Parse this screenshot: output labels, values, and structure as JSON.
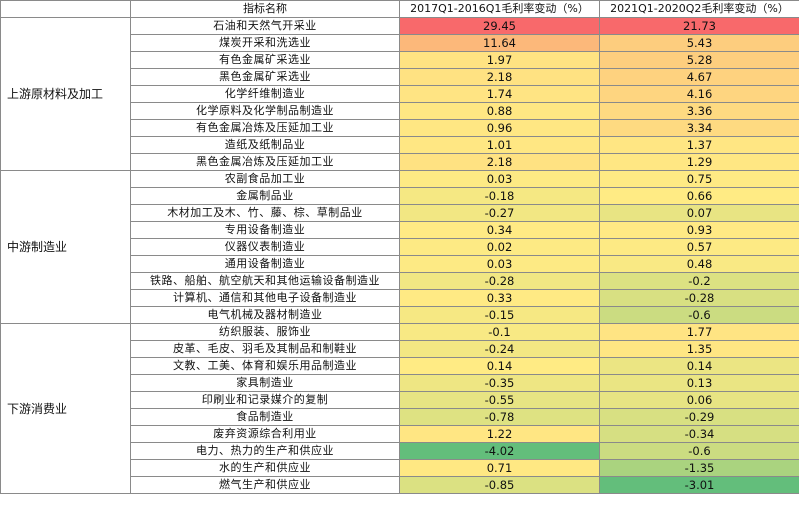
{
  "header": {
    "col_name": "指标名称",
    "col_v1": "2017Q1-2016Q1毛利率变动（%）",
    "col_v2": "2021Q1-2020Q2毛利率变动（%）"
  },
  "groups": [
    {
      "label": "上游原材料及加工",
      "rows": [
        {
          "name": "石油和天然气开采业",
          "v1": "29.45",
          "v2": "21.73"
        },
        {
          "name": "煤炭开采和洗选业",
          "v1": "11.64",
          "v2": "5.43"
        },
        {
          "name": "有色金属矿采选业",
          "v1": "1.97",
          "v2": "5.28"
        },
        {
          "name": "黑色金属矿采选业",
          "v1": "2.18",
          "v2": "4.67"
        },
        {
          "name": "化学纤维制造业",
          "v1": "1.74",
          "v2": "4.16"
        },
        {
          "name": "化学原料及化学制品制造业",
          "v1": "0.88",
          "v2": "3.36"
        },
        {
          "name": "有色金属冶炼及压延加工业",
          "v1": "0.96",
          "v2": "3.34"
        },
        {
          "name": "造纸及纸制品业",
          "v1": "1.01",
          "v2": "1.37"
        },
        {
          "name": "黑色金属冶炼及压延加工业",
          "v1": "2.18",
          "v2": "1.29"
        }
      ]
    },
    {
      "label": "中游制造业",
      "rows": [
        {
          "name": "农副食品加工业",
          "v1": "0.03",
          "v2": "0.75"
        },
        {
          "name": "金属制品业",
          "v1": "-0.18",
          "v2": "0.66"
        },
        {
          "name": "木材加工及木、竹、藤、棕、草制品业",
          "v1": "-0.27",
          "v2": "0.07"
        },
        {
          "name": "专用设备制造业",
          "v1": "0.34",
          "v2": "0.93"
        },
        {
          "name": "仪器仪表制造业",
          "v1": "0.02",
          "v2": "0.57"
        },
        {
          "name": "通用设备制造业",
          "v1": "0.03",
          "v2": "0.48"
        },
        {
          "name": "铁路、船舶、航空航天和其他运输设备制造业",
          "v1": "-0.28",
          "v2": "-0.2"
        },
        {
          "name": "计算机、通信和其他电子设备制造业",
          "v1": "0.33",
          "v2": "-0.28"
        },
        {
          "name": "电气机械及器材制造业",
          "v1": "-0.15",
          "v2": "-0.6"
        }
      ]
    },
    {
      "label": "下游消费业",
      "rows": [
        {
          "name": "纺织服装、服饰业",
          "v1": "-0.1",
          "v2": "1.77"
        },
        {
          "name": "皮革、毛皮、羽毛及其制品和制鞋业",
          "v1": "-0.24",
          "v2": "1.35"
        },
        {
          "name": "文教、工美、体育和娱乐用品制造业",
          "v1": "0.14",
          "v2": "0.14"
        },
        {
          "name": "家具制造业",
          "v1": "-0.35",
          "v2": "0.13"
        },
        {
          "name": "印刷业和记录媒介的复制",
          "v1": "-0.55",
          "v2": "0.06"
        },
        {
          "name": "食品制造业",
          "v1": "-0.78",
          "v2": "-0.29"
        },
        {
          "name": "废弃资源综合利用业",
          "v1": "1.22",
          "v2": "-0.34"
        },
        {
          "name": "电力、热力的生产和供应业",
          "v1": "-4.02",
          "v2": "-0.6"
        },
        {
          "name": "水的生产和供应业",
          "v1": "0.71",
          "v2": "-1.35"
        },
        {
          "name": "燃气生产和供应业",
          "v1": "-0.85",
          "v2": "-3.01"
        }
      ]
    }
  ],
  "colors": {
    "min": "#63be7b",
    "mid": "#ffeb84",
    "max": "#f8696b"
  }
}
